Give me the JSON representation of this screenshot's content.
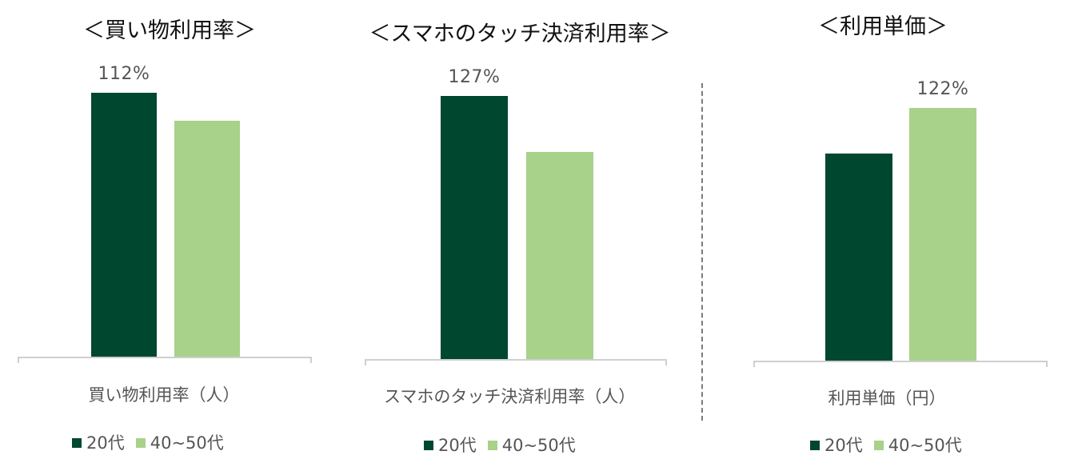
{
  "colors": {
    "series_20s": "#004730",
    "series_40_50s": "#a8d18a"
  },
  "chart_data": [
    {
      "type": "bar",
      "title": "＜買い物利用率＞",
      "categories": [
        "買い物利用率（人）"
      ],
      "series": [
        {
          "name": "20代",
          "values": [
            112
          ]
        },
        {
          "name": "40~50代",
          "values": [
            100
          ]
        }
      ],
      "data_labels": [
        "112%",
        ""
      ],
      "ylim": [
        0,
        112
      ],
      "legend": [
        "20代",
        "40~50代"
      ],
      "legend_position": "bottom",
      "grid": false
    },
    {
      "type": "bar",
      "title": "＜スマホのタッチ決済利用率＞",
      "categories": [
        "スマホのタッチ決済利用率（人）"
      ],
      "series": [
        {
          "name": "20代",
          "values": [
            127
          ]
        },
        {
          "name": "40~50代",
          "values": [
            100
          ]
        }
      ],
      "data_labels": [
        "127%",
        ""
      ],
      "ylim": [
        0,
        127
      ],
      "legend": [
        "20代",
        "40~50代"
      ],
      "legend_position": "bottom",
      "grid": false
    },
    {
      "type": "bar",
      "title": "＜利用単価＞",
      "categories": [
        "利用単価（円）"
      ],
      "series": [
        {
          "name": "20代",
          "values": [
            100
          ]
        },
        {
          "name": "40~50代",
          "values": [
            122
          ]
        }
      ],
      "data_labels": [
        "",
        "122%"
      ],
      "ylim": [
        0,
        122
      ],
      "legend": [
        "20代",
        "40~50代"
      ],
      "legend_position": "bottom",
      "grid": false
    }
  ]
}
